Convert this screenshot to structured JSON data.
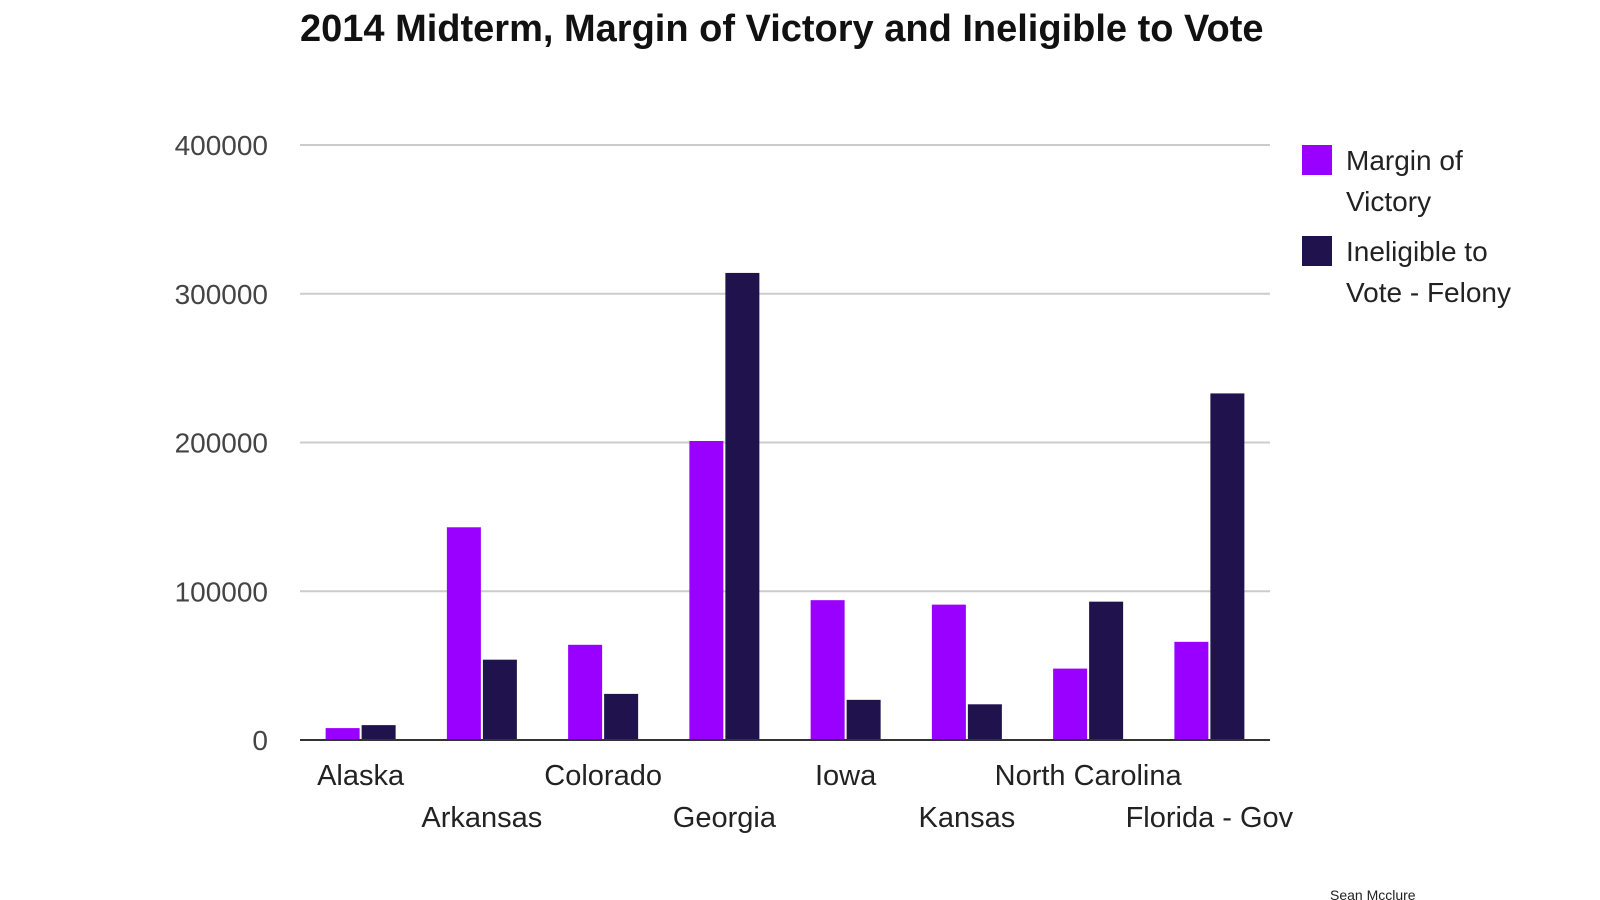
{
  "chart_data": {
    "type": "bar",
    "title": "2014 Midterm, Margin of Victory and Ineligible to Vote",
    "categories": [
      "Alaska",
      "Arkansas",
      "Colorado",
      "Georgia",
      "Iowa",
      "Kansas",
      "North Carolina",
      "Florida - Gov"
    ],
    "series": [
      {
        "name": "Margin of Victory",
        "name_lines": [
          "Margin of",
          "Victory"
        ],
        "color": "#9900ff",
        "values": [
          8000,
          143000,
          64000,
          201000,
          94000,
          91000,
          48000,
          66000
        ]
      },
      {
        "name": "Ineligible to Vote - Felony",
        "name_lines": [
          "Ineligible to",
          "Vote - Felony"
        ],
        "color": "#20124d",
        "values": [
          10000,
          54000,
          31000,
          314000,
          27000,
          24000,
          93000,
          233000
        ]
      }
    ],
    "ylim": [
      0,
      400000
    ],
    "yticks": [
      0,
      100000,
      200000,
      300000,
      400000
    ],
    "ytick_labels": [
      "0",
      "100000",
      "200000",
      "300000",
      "400000"
    ],
    "grid": true,
    "legend_position": "right",
    "xlabel": "",
    "ylabel": "",
    "credit": "Sean Mcclure"
  }
}
